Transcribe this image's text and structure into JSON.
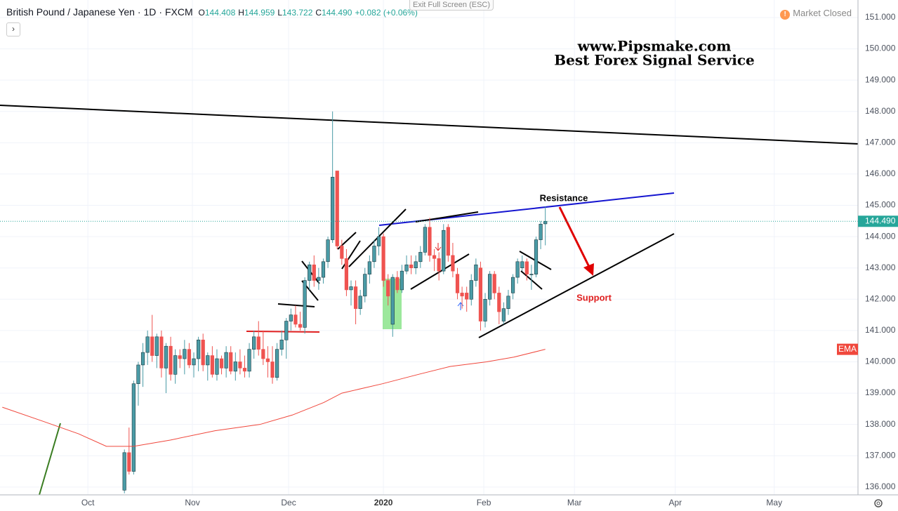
{
  "header": {
    "symbol": "British Pound / Japanese Yen",
    "interval": "1D",
    "source": "FXCM",
    "o_label": "O",
    "o": "144.408",
    "h_label": "H",
    "h": "144.959",
    "l_label": "L",
    "l": "143.722",
    "c_label": "C",
    "c": "144.490",
    "change": "+0.082 (+0.06%)",
    "exit": "Exit Full Screen (ESC)",
    "status": "Market Closed"
  },
  "chart_data": {
    "type": "candlestick",
    "title": "www.Pipsmake.com",
    "subtitle": "Best Forex Signal Service",
    "annotations": [
      "Resistance",
      "Support"
    ],
    "up_color": "#4a9ba6",
    "down_color": "#ef5350",
    "ohlc": [
      [
        135.9,
        137.2,
        135.8,
        137.1
      ],
      [
        137.1,
        137.9,
        136.4,
        136.5
      ],
      [
        136.5,
        139.4,
        136.4,
        139.3
      ],
      [
        139.3,
        140.0,
        138.6,
        139.9
      ],
      [
        139.9,
        140.6,
        139.2,
        140.3
      ],
      [
        140.3,
        141.0,
        139.9,
        140.8
      ],
      [
        140.8,
        141.5,
        140.0,
        140.2
      ],
      [
        140.2,
        140.9,
        139.8,
        140.8
      ],
      [
        140.8,
        141.0,
        139.5,
        139.8
      ],
      [
        139.8,
        140.6,
        139.0,
        140.5
      ],
      [
        140.5,
        140.8,
        139.4,
        139.6
      ],
      [
        139.6,
        140.4,
        139.3,
        140.2
      ],
      [
        140.2,
        140.4,
        139.8,
        140.1
      ],
      [
        140.1,
        140.7,
        139.6,
        140.4
      ],
      [
        140.4,
        140.6,
        139.8,
        139.9
      ],
      [
        139.9,
        140.3,
        139.5,
        140.1
      ],
      [
        140.1,
        140.8,
        139.7,
        140.7
      ],
      [
        140.7,
        140.9,
        139.7,
        139.9
      ],
      [
        139.9,
        140.3,
        139.4,
        140.2
      ],
      [
        140.2,
        140.5,
        139.5,
        139.6
      ],
      [
        139.6,
        140.4,
        139.4,
        140.1
      ],
      [
        140.1,
        140.2,
        139.6,
        139.8
      ],
      [
        139.8,
        140.5,
        139.5,
        140.3
      ],
      [
        140.3,
        140.5,
        139.6,
        139.7
      ],
      [
        139.7,
        140.3,
        139.4,
        140.0
      ],
      [
        140.0,
        140.4,
        139.6,
        139.8
      ],
      [
        139.8,
        140.2,
        139.5,
        139.7
      ],
      [
        139.7,
        140.6,
        139.5,
        140.4
      ],
      [
        140.4,
        141.0,
        140.1,
        140.8
      ],
      [
        140.8,
        141.3,
        140.2,
        140.4
      ],
      [
        140.4,
        141.0,
        139.9,
        140.1
      ],
      [
        140.1,
        140.5,
        139.5,
        140.0
      ],
      [
        140.0,
        140.5,
        139.3,
        139.5
      ],
      [
        139.5,
        140.6,
        139.4,
        140.4
      ],
      [
        140.4,
        141.0,
        140.2,
        140.7
      ],
      [
        140.7,
        141.4,
        140.1,
        141.3
      ],
      [
        141.3,
        141.7,
        141.0,
        141.5
      ],
      [
        141.5,
        141.8,
        141.1,
        141.2
      ],
      [
        141.2,
        141.6,
        141.0,
        141.1
      ],
      [
        141.1,
        142.7,
        140.9,
        142.6
      ],
      [
        142.6,
        143.2,
        142.3,
        143.1
      ],
      [
        143.1,
        143.4,
        142.4,
        142.6
      ],
      [
        142.6,
        143.0,
        142.3,
        142.7
      ],
      [
        142.7,
        143.3,
        142.5,
        143.2
      ],
      [
        143.2,
        144.0,
        143.0,
        143.9
      ],
      [
        143.9,
        148.0,
        143.8,
        145.9
      ],
      [
        146.1,
        146.1,
        143.6,
        143.7
      ],
      [
        143.7,
        143.9,
        143.1,
        143.3
      ],
      [
        143.3,
        143.6,
        142.1,
        142.3
      ],
      [
        142.3,
        142.6,
        141.8,
        142.4
      ],
      [
        142.4,
        142.6,
        141.2,
        141.7
      ],
      [
        141.7,
        142.3,
        141.5,
        142.1
      ],
      [
        142.1,
        143.0,
        141.9,
        142.8
      ],
      [
        142.8,
        143.4,
        142.5,
        143.2
      ],
      [
        143.2,
        143.9,
        143.0,
        143.7
      ],
      [
        143.7,
        144.3,
        143.4,
        144.0
      ],
      [
        144.0,
        144.1,
        142.4,
        142.6
      ],
      [
        142.6,
        142.8,
        141.8,
        142.1
      ],
      [
        141.2,
        142.8,
        140.8,
        142.7
      ],
      [
        142.7,
        142.9,
        142.2,
        142.3
      ],
      [
        142.3,
        143.1,
        142.2,
        142.9
      ],
      [
        142.9,
        143.4,
        142.8,
        143.1
      ],
      [
        143.1,
        143.4,
        142.8,
        143.0
      ],
      [
        143.0,
        143.4,
        142.8,
        143.2
      ],
      [
        143.2,
        143.7,
        143.0,
        143.5
      ],
      [
        143.5,
        144.4,
        143.4,
        144.3
      ],
      [
        144.3,
        144.6,
        143.2,
        143.4
      ],
      [
        143.4,
        143.6,
        142.9,
        143.3
      ],
      [
        143.3,
        143.5,
        142.6,
        142.9
      ],
      [
        142.9,
        144.4,
        142.8,
        144.2
      ],
      [
        144.3,
        144.4,
        143.2,
        143.4
      ],
      [
        143.4,
        143.8,
        142.7,
        142.9
      ],
      [
        142.8,
        143.0,
        142.0,
        142.2
      ],
      [
        142.2,
        142.4,
        141.7,
        142.1
      ],
      [
        142.2,
        142.4,
        141.6,
        142.0
      ],
      [
        142.0,
        142.8,
        141.8,
        142.6
      ],
      [
        142.6,
        143.3,
        142.4,
        143.1
      ],
      [
        143.0,
        143.2,
        141.0,
        141.3
      ],
      [
        141.3,
        142.2,
        141.1,
        142.0
      ],
      [
        142.0,
        142.9,
        141.8,
        142.8
      ],
      [
        142.8,
        142.9,
        142.0,
        142.2
      ],
      [
        142.2,
        142.4,
        141.2,
        141.6
      ],
      [
        141.3,
        141.9,
        141.2,
        141.7
      ],
      [
        141.7,
        142.3,
        141.5,
        142.1
      ],
      [
        142.2,
        142.8,
        142.0,
        142.7
      ],
      [
        142.7,
        143.3,
        142.5,
        143.2
      ],
      [
        143.0,
        143.4,
        142.9,
        143.2
      ],
      [
        143.2,
        143.3,
        142.6,
        142.8
      ],
      [
        142.8,
        143.1,
        142.3,
        142.8
      ],
      [
        142.8,
        144.0,
        142.7,
        143.9
      ],
      [
        143.9,
        144.5,
        143.6,
        144.4
      ],
      [
        144.408,
        144.959,
        143.722,
        144.49
      ]
    ],
    "ema": {
      "name": "EMA",
      "color": "#f0473c",
      "x": [
        -26.4,
        -17.6,
        -9.9,
        -3.9,
        2,
        9.9,
        19.6,
        29.3,
        36.3,
        43.1,
        47,
        55.8,
        63.6,
        70.4,
        78.3,
        84.2,
        91
      ],
      "values": [
        138.55,
        138.1,
        137.7,
        137.3,
        137.3,
        137.5,
        137.8,
        138.0,
        138.3,
        138.7,
        139.0,
        139.3,
        139.6,
        139.85,
        140.0,
        140.15,
        140.4
      ]
    },
    "last_price": {
      "value": 144.49,
      "label": "144.490"
    },
    "xlim": [
      -26.9,
      158.6
    ],
    "ylim": [
      135.75,
      151.56
    ],
    "xticks": [
      {
        "value": -7.9,
        "label": "Oct"
      },
      {
        "value": 14.7,
        "label": "Nov"
      },
      {
        "value": 35.5,
        "label": "Dec"
      },
      {
        "value": 56.0,
        "label": "2020"
      },
      {
        "value": 77.7,
        "label": "Feb"
      },
      {
        "value": 97.3,
        "label": "Mar"
      },
      {
        "value": 119.1,
        "label": "Apr"
      },
      {
        "value": 140.5,
        "label": "May"
      }
    ],
    "yticks": [
      {
        "value": 136,
        "label": "136.000"
      },
      {
        "value": 137,
        "label": "137.000"
      },
      {
        "value": 138,
        "label": "138.000"
      },
      {
        "value": 139,
        "label": "139.000"
      },
      {
        "value": 140,
        "label": "140.000"
      },
      {
        "value": 141,
        "label": "141.000"
      },
      {
        "value": 142,
        "label": "142.000"
      },
      {
        "value": 143,
        "label": "143.000"
      },
      {
        "value": 144,
        "label": "144.000"
      },
      {
        "value": 145,
        "label": "145.000"
      },
      {
        "value": 146,
        "label": "146.000"
      },
      {
        "value": 147,
        "label": "147.000"
      },
      {
        "value": 148,
        "label": "148.000"
      },
      {
        "value": 149,
        "label": "149.000"
      },
      {
        "value": 150,
        "label": "150.000"
      },
      {
        "value": 151,
        "label": "151.000"
      }
    ],
    "grid": true
  }
}
